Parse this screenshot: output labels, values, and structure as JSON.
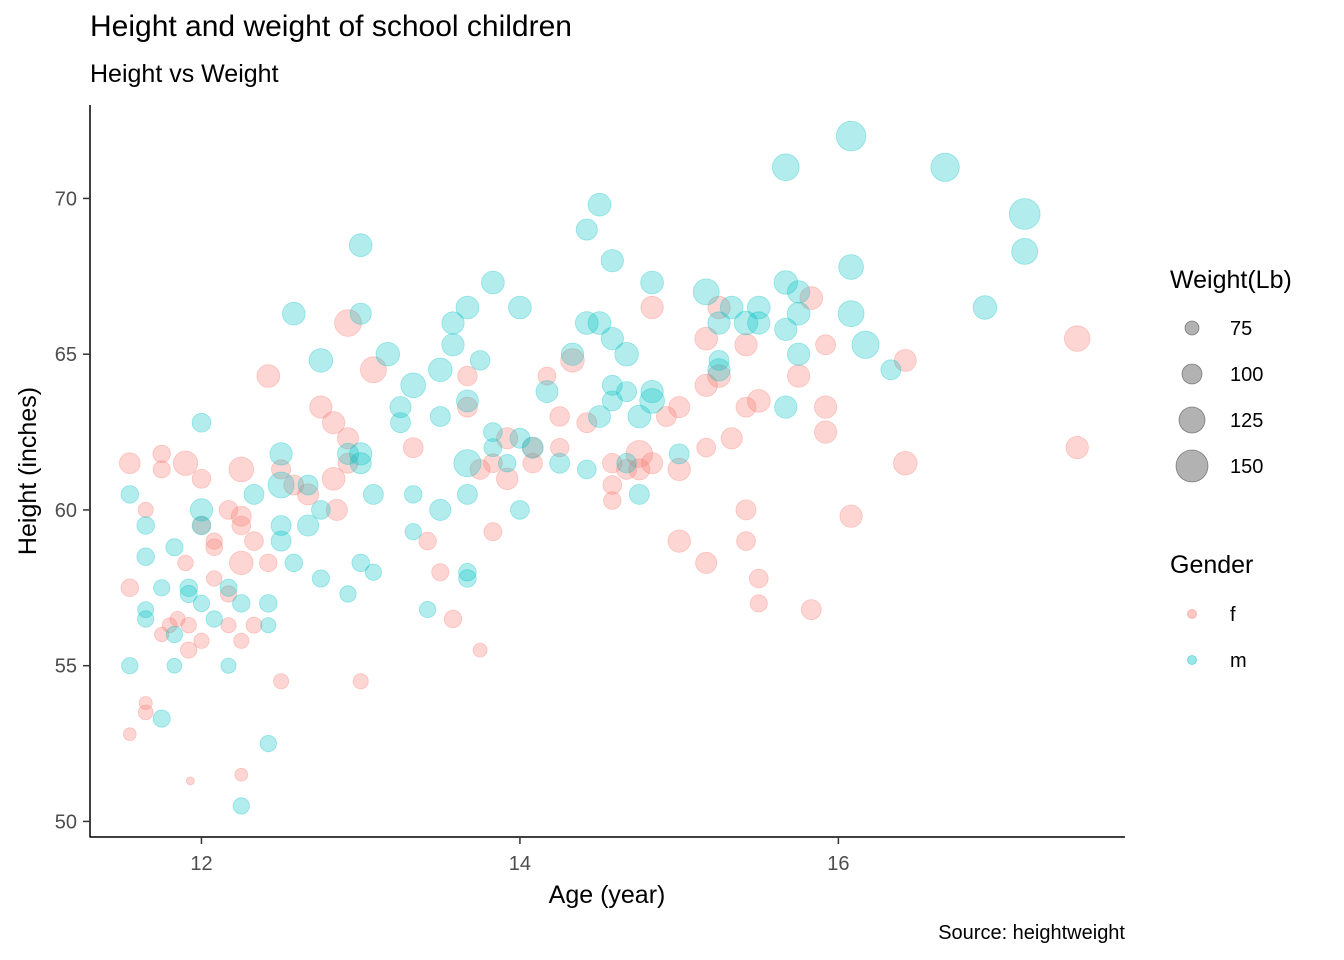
{
  "chart_data": {
    "type": "scatter",
    "title": "Height and weight of school children",
    "subtitle": "Height vs Weight",
    "caption": "Source: heightweight",
    "xlabel": "Age (year)",
    "ylabel": "Height (inches)",
    "xlim": [
      11.3,
      17.8
    ],
    "ylim": [
      49.5,
      73.0
    ],
    "x_ticks": [
      12,
      14,
      16
    ],
    "y_ticks": [
      50,
      55,
      60,
      65,
      70
    ],
    "grid": false,
    "legend_position": "right",
    "size_legend": {
      "title": "Weight(Lb)",
      "values": [
        75,
        100,
        125,
        150
      ]
    },
    "color_legend": {
      "title": "Gender",
      "entries": [
        {
          "label": "f",
          "color": "#F8766D"
        },
        {
          "label": "m",
          "color": "#00BFC4"
        }
      ]
    },
    "colors": {
      "f": "#F8766D",
      "m": "#00BFC4",
      "size_key": "#666666"
    },
    "series": [
      {
        "name": "f",
        "points": [
          [
            11.55,
            61.5,
            103
          ],
          [
            11.55,
            57.5,
            90
          ],
          [
            11.55,
            52.8,
            70
          ],
          [
            11.65,
            60.0,
            80
          ],
          [
            11.65,
            53.8,
            72
          ],
          [
            11.65,
            53.5,
            78
          ],
          [
            11.75,
            61.8,
            90
          ],
          [
            11.75,
            61.3,
            88
          ],
          [
            11.75,
            56.0,
            77
          ],
          [
            11.8,
            56.3,
            78
          ],
          [
            11.85,
            56.5,
            80
          ],
          [
            11.9,
            61.5,
            118
          ],
          [
            11.9,
            58.3,
            82
          ],
          [
            11.92,
            56.3,
            82
          ],
          [
            11.92,
            55.5,
            85
          ],
          [
            11.93,
            51.3,
            50
          ],
          [
            12.0,
            61.0,
            95
          ],
          [
            12.0,
            59.5,
            90
          ],
          [
            12.0,
            55.8,
            80
          ],
          [
            12.08,
            59.0,
            85
          ],
          [
            12.08,
            58.8,
            87
          ],
          [
            12.08,
            57.8,
            82
          ],
          [
            12.17,
            60.0,
            95
          ],
          [
            12.17,
            57.3,
            85
          ],
          [
            12.17,
            56.3,
            80
          ],
          [
            12.25,
            61.3,
            120
          ],
          [
            12.25,
            59.8,
            100
          ],
          [
            12.25,
            59.5,
            95
          ],
          [
            12.25,
            58.3,
            115
          ],
          [
            12.25,
            55.8,
            80
          ],
          [
            12.25,
            51.5,
            70
          ],
          [
            12.33,
            59.0,
            95
          ],
          [
            12.33,
            56.3,
            83
          ],
          [
            12.42,
            64.3,
            112
          ],
          [
            12.42,
            58.3,
            90
          ],
          [
            12.5,
            61.3,
            97
          ],
          [
            12.5,
            54.5,
            80
          ],
          [
            12.58,
            60.8,
            100
          ],
          [
            12.67,
            60.5,
            105
          ],
          [
            12.75,
            63.3,
            110
          ],
          [
            12.83,
            62.8,
            110
          ],
          [
            12.83,
            61.0,
            112
          ],
          [
            12.85,
            60.0,
            105
          ],
          [
            12.92,
            66.0,
            128
          ],
          [
            12.92,
            62.3,
            105
          ],
          [
            12.92,
            61.5,
            100
          ],
          [
            13.0,
            54.5,
            80
          ],
          [
            13.08,
            64.5,
            125
          ],
          [
            13.33,
            62.0,
            100
          ],
          [
            13.42,
            59.0,
            90
          ],
          [
            13.5,
            58.0,
            88
          ],
          [
            13.58,
            56.5,
            90
          ],
          [
            13.67,
            64.3,
            98
          ],
          [
            13.67,
            63.3,
            100
          ],
          [
            13.75,
            61.3,
            100
          ],
          [
            13.75,
            55.5,
            75
          ],
          [
            13.83,
            61.5,
            95
          ],
          [
            13.83,
            59.3,
            92
          ],
          [
            13.92,
            62.3,
            105
          ],
          [
            13.92,
            61.0,
            107
          ],
          [
            14.08,
            62.0,
            100
          ],
          [
            14.08,
            61.5,
            98
          ],
          [
            14.17,
            64.3,
            92
          ],
          [
            14.25,
            63.0,
            98
          ],
          [
            14.25,
            62.0,
            93
          ],
          [
            14.33,
            64.8,
            115
          ],
          [
            14.42,
            62.8,
            100
          ],
          [
            14.58,
            61.5,
            98
          ],
          [
            14.58,
            60.8,
            95
          ],
          [
            14.58,
            60.3,
            90
          ],
          [
            14.67,
            61.3,
            100
          ],
          [
            14.75,
            61.8,
            128
          ],
          [
            14.75,
            61.3,
            105
          ],
          [
            14.83,
            66.5,
            110
          ],
          [
            14.83,
            61.5,
            105
          ],
          [
            14.92,
            63.0,
            100
          ],
          [
            15.0,
            63.3,
            105
          ],
          [
            15.0,
            61.3,
            110
          ],
          [
            15.0,
            59.0,
            110
          ],
          [
            15.17,
            65.5,
            112
          ],
          [
            15.17,
            64.0,
            110
          ],
          [
            15.17,
            62.0,
            95
          ],
          [
            15.17,
            58.3,
            105
          ],
          [
            15.25,
            66.5,
            110
          ],
          [
            15.25,
            64.3,
            112
          ],
          [
            15.33,
            62.3,
            105
          ],
          [
            15.42,
            65.3,
            110
          ],
          [
            15.42,
            63.3,
            100
          ],
          [
            15.42,
            60.0,
            100
          ],
          [
            15.42,
            59.0,
            95
          ],
          [
            15.5,
            63.5,
            112
          ],
          [
            15.5,
            57.8,
            95
          ],
          [
            15.5,
            57.0,
            88
          ],
          [
            15.75,
            64.3,
            110
          ],
          [
            15.83,
            66.8,
            112
          ],
          [
            15.83,
            56.8,
            100
          ],
          [
            15.92,
            65.3,
            100
          ],
          [
            15.92,
            63.3,
            110
          ],
          [
            15.92,
            62.5,
            110
          ],
          [
            16.08,
            59.8,
            110
          ],
          [
            16.42,
            64.8,
            108
          ],
          [
            16.42,
            61.5,
            115
          ],
          [
            17.5,
            65.5,
            123
          ],
          [
            17.5,
            62.0,
            110
          ]
        ]
      },
      {
        "name": "m",
        "points": [
          [
            11.55,
            60.5,
            90
          ],
          [
            11.55,
            55.0,
            85
          ],
          [
            11.65,
            59.5,
            90
          ],
          [
            11.65,
            58.5,
            90
          ],
          [
            11.65,
            56.8,
            83
          ],
          [
            11.65,
            56.5,
            85
          ],
          [
            11.75,
            57.5,
            85
          ],
          [
            11.75,
            53.3,
            88
          ],
          [
            11.83,
            58.8,
            88
          ],
          [
            11.83,
            56.0,
            85
          ],
          [
            11.83,
            55.0,
            78
          ],
          [
            11.92,
            57.5,
            90
          ],
          [
            11.92,
            57.3,
            88
          ],
          [
            12.0,
            62.8,
            95
          ],
          [
            12.0,
            60.0,
            110
          ],
          [
            12.0,
            59.5,
            95
          ],
          [
            12.0,
            57.0,
            85
          ],
          [
            12.08,
            56.5,
            85
          ],
          [
            12.17,
            57.5,
            88
          ],
          [
            12.17,
            55.0,
            80
          ],
          [
            12.25,
            57.0,
            90
          ],
          [
            12.33,
            60.5,
            100
          ],
          [
            12.42,
            57.0,
            90
          ],
          [
            12.42,
            56.3,
            80
          ],
          [
            12.42,
            52.5,
            85
          ],
          [
            12.25,
            50.5,
            85
          ],
          [
            12.5,
            61.8,
            110
          ],
          [
            12.5,
            60.8,
            125
          ],
          [
            12.5,
            59.5,
            100
          ],
          [
            12.5,
            59.0,
            100
          ],
          [
            12.58,
            66.3,
            112
          ],
          [
            12.58,
            58.3,
            90
          ],
          [
            12.67,
            60.8,
            100
          ],
          [
            12.67,
            59.5,
            105
          ],
          [
            12.75,
            64.8,
            115
          ],
          [
            12.75,
            60.0,
            95
          ],
          [
            12.75,
            57.8,
            88
          ],
          [
            12.92,
            61.8,
            105
          ],
          [
            12.92,
            57.3,
            85
          ],
          [
            13.0,
            68.5,
            112
          ],
          [
            13.0,
            66.3,
            105
          ],
          [
            13.0,
            61.8,
            110
          ],
          [
            13.0,
            61.5,
            105
          ],
          [
            13.0,
            58.3,
            90
          ],
          [
            13.08,
            60.5,
            100
          ],
          [
            13.08,
            58.0,
            85
          ],
          [
            13.17,
            65.0,
            115
          ],
          [
            13.25,
            63.3,
            105
          ],
          [
            13.25,
            62.8,
            100
          ],
          [
            13.33,
            64.0,
            120
          ],
          [
            13.33,
            60.5,
            90
          ],
          [
            13.33,
            59.3,
            85
          ],
          [
            13.42,
            56.8,
            85
          ],
          [
            13.5,
            64.5,
            115
          ],
          [
            13.5,
            63.0,
            100
          ],
          [
            13.5,
            60.0,
            105
          ],
          [
            13.58,
            66.0,
            110
          ],
          [
            13.58,
            65.3,
            110
          ],
          [
            13.67,
            66.5,
            112
          ],
          [
            13.67,
            63.5,
            108
          ],
          [
            13.67,
            61.5,
            130
          ],
          [
            13.67,
            60.5,
            100
          ],
          [
            13.67,
            58.0,
            90
          ],
          [
            13.67,
            57.8,
            90
          ],
          [
            13.75,
            64.8,
            98
          ],
          [
            13.83,
            67.3,
            112
          ],
          [
            13.83,
            62.5,
            95
          ],
          [
            13.83,
            62.0,
            92
          ],
          [
            13.92,
            61.5,
            90
          ],
          [
            14.0,
            66.5,
            112
          ],
          [
            14.0,
            62.3,
            100
          ],
          [
            14.0,
            60.0,
            95
          ],
          [
            14.08,
            62.0,
            105
          ],
          [
            14.17,
            63.8,
            108
          ],
          [
            14.25,
            61.5,
            100
          ],
          [
            14.33,
            65.0,
            110
          ],
          [
            14.42,
            69.0,
            105
          ],
          [
            14.42,
            66.0,
            112
          ],
          [
            14.42,
            61.3,
            95
          ],
          [
            14.5,
            69.8,
            112
          ],
          [
            14.5,
            66.0,
            112
          ],
          [
            14.5,
            63.0,
            108
          ],
          [
            14.58,
            68.0,
            110
          ],
          [
            14.58,
            65.5,
            110
          ],
          [
            14.58,
            64.0,
            100
          ],
          [
            14.58,
            63.5,
            100
          ],
          [
            14.67,
            65.0,
            115
          ],
          [
            14.67,
            63.8,
            100
          ],
          [
            14.67,
            61.5,
            98
          ],
          [
            14.75,
            63.0,
            112
          ],
          [
            14.75,
            60.5,
            100
          ],
          [
            14.83,
            67.3,
            112
          ],
          [
            14.83,
            63.8,
            110
          ],
          [
            14.83,
            63.5,
            120
          ],
          [
            15.0,
            61.8,
            100
          ],
          [
            15.17,
            67.0,
            125
          ],
          [
            15.25,
            66.0,
            110
          ],
          [
            15.25,
            64.8,
            100
          ],
          [
            15.25,
            64.5,
            110
          ],
          [
            15.33,
            66.5,
            112
          ],
          [
            15.42,
            66.0,
            115
          ],
          [
            15.5,
            66.5,
            112
          ],
          [
            15.5,
            66.0,
            110
          ],
          [
            15.67,
            71.0,
            128
          ],
          [
            15.67,
            67.3,
            115
          ],
          [
            15.67,
            65.8,
            110
          ],
          [
            15.67,
            63.3,
            110
          ],
          [
            15.75,
            67.0,
            110
          ],
          [
            15.75,
            66.3,
            112
          ],
          [
            15.75,
            65.0,
            110
          ],
          [
            16.08,
            72.0,
            140
          ],
          [
            16.08,
            67.8,
            120
          ],
          [
            16.08,
            66.3,
            125
          ],
          [
            16.17,
            65.3,
            130
          ],
          [
            16.33,
            64.5,
            100
          ],
          [
            16.67,
            71.0,
            135
          ],
          [
            16.92,
            66.5,
            115
          ],
          [
            17.17,
            69.5,
            145
          ],
          [
            17.17,
            68.3,
            125
          ]
        ]
      }
    ]
  }
}
